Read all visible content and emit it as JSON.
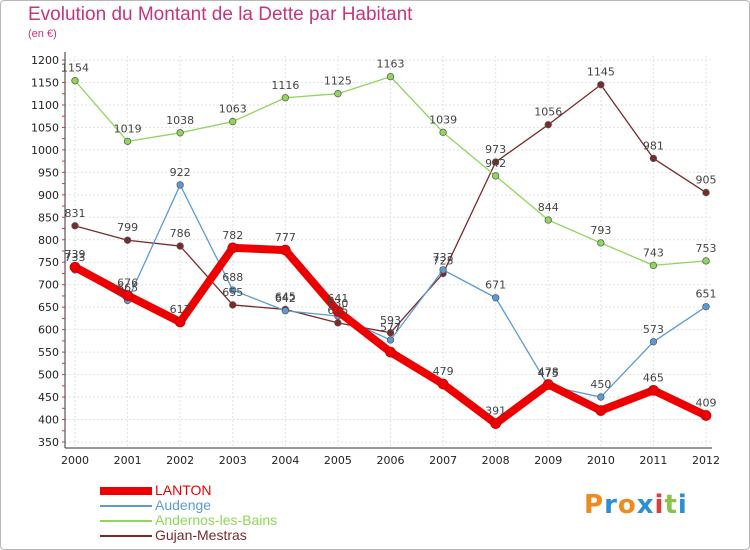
{
  "title": "Evolution du Montant de la Dette par Habitant",
  "unit": "(en €)",
  "logo": {
    "letters": [
      "P",
      "r",
      "o",
      "x",
      "i",
      "t",
      "i"
    ],
    "colors": [
      "#f08a1c",
      "#2b8fd6",
      "#f08a1c",
      "#2b8fd6",
      "#e23b3b",
      "#8bc34a",
      "#2b8fd6"
    ]
  },
  "chart_data": {
    "type": "line",
    "x": [
      "2000",
      "2001",
      "2002",
      "2003",
      "2004",
      "2005",
      "2006",
      "2007",
      "2008",
      "2009",
      "2010",
      "2011",
      "2012"
    ],
    "ylim": [
      350,
      1200
    ],
    "yticks": [
      350,
      400,
      450,
      500,
      550,
      600,
      650,
      700,
      750,
      800,
      850,
      900,
      950,
      1000,
      1050,
      1100,
      1150,
      1200
    ],
    "grid": true,
    "legend_position": "bottom-left",
    "series": [
      {
        "name": "LANTON",
        "color": "#ee0000",
        "values": [
          739,
          676,
          617,
          782,
          777,
          641,
          550,
          479,
          391,
          478,
          420,
          465,
          409
        ],
        "labels": [
          "739",
          "676",
          "617",
          "782",
          "777",
          "641",
          "",
          "479",
          "391",
          "478",
          "",
          "465",
          "409"
        ]
      },
      {
        "name": "Audenge",
        "color": "#5b9bd5",
        "values": [
          733,
          665,
          922,
          688,
          642,
          630,
          577,
          733,
          671,
          475,
          450,
          573,
          651
        ],
        "labels": [
          "733",
          "665",
          "922",
          "688",
          "642",
          "630",
          "577",
          "733",
          "671",
          "475",
          "450",
          "573",
          "651"
        ]
      },
      {
        "name": "Andernos-les-Bains",
        "color": "#8fd65a",
        "values": [
          1154,
          1019,
          1038,
          1063,
          1116,
          1125,
          1163,
          1039,
          942,
          844,
          793,
          743,
          753
        ],
        "labels": [
          "1154",
          "1019",
          "1038",
          "1063",
          "1116",
          "1125",
          "1163",
          "1039",
          "942",
          "844",
          "793",
          "743",
          "753"
        ]
      },
      {
        "name": "Gujan-Mestras",
        "color": "#7b2a2a",
        "values": [
          831,
          799,
          786,
          655,
          645,
          615,
          593,
          725,
          973,
          1056,
          1145,
          981,
          905
        ],
        "labels": [
          "831",
          "799",
          "786",
          "655",
          "645",
          "615",
          "593",
          "725",
          "973",
          "1056",
          "1145",
          "981",
          "905"
        ]
      }
    ]
  }
}
